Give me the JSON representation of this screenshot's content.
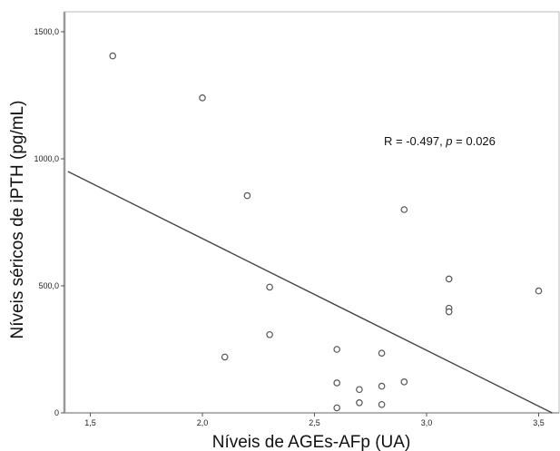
{
  "chart_data": {
    "type": "scatter",
    "title": "",
    "xlabel": "Níveis de AGEs-AFp (UA)",
    "ylabel": "Níveis séricos de iPTH (pg/mL)",
    "xlim": [
      1.4,
      3.6
    ],
    "ylim": [
      0,
      1500
    ],
    "x_ticks": [
      1.5,
      2.0,
      2.5,
      3.0,
      3.5
    ],
    "x_tick_labels": [
      "1,5",
      "2,0",
      "2,5",
      "3,0",
      "3,5"
    ],
    "y_ticks": [
      0,
      500,
      1000,
      1500
    ],
    "y_tick_labels": [
      "0",
      "500,0",
      "1000,0",
      "1500,0"
    ],
    "grid": false,
    "points": [
      {
        "x": 1.6,
        "y": 1405
      },
      {
        "x": 2.0,
        "y": 1240
      },
      {
        "x": 2.1,
        "y": 220
      },
      {
        "x": 2.2,
        "y": 855
      },
      {
        "x": 2.3,
        "y": 495
      },
      {
        "x": 2.3,
        "y": 308
      },
      {
        "x": 2.6,
        "y": 250
      },
      {
        "x": 2.6,
        "y": 118
      },
      {
        "x": 2.6,
        "y": 20
      },
      {
        "x": 2.7,
        "y": 92
      },
      {
        "x": 2.7,
        "y": 40
      },
      {
        "x": 2.8,
        "y": 235
      },
      {
        "x": 2.8,
        "y": 105
      },
      {
        "x": 2.8,
        "y": 33
      },
      {
        "x": 2.9,
        "y": 800
      },
      {
        "x": 2.9,
        "y": 122
      },
      {
        "x": 3.1,
        "y": 527
      },
      {
        "x": 3.1,
        "y": 412
      },
      {
        "x": 3.1,
        "y": 398
      },
      {
        "x": 3.5,
        "y": 480
      }
    ],
    "fit_line": {
      "x": [
        1.4,
        3.56
      ],
      "y": [
        950,
        0
      ]
    },
    "annotation": {
      "text_prefix": "R = -0.497, ",
      "p_symbol": "p",
      "text_suffix": " = 0.026"
    },
    "colors": {
      "marker_stroke": "#555555",
      "fit_line": "#444444",
      "axis": "#999999",
      "frame": "#bbbbbb"
    }
  }
}
